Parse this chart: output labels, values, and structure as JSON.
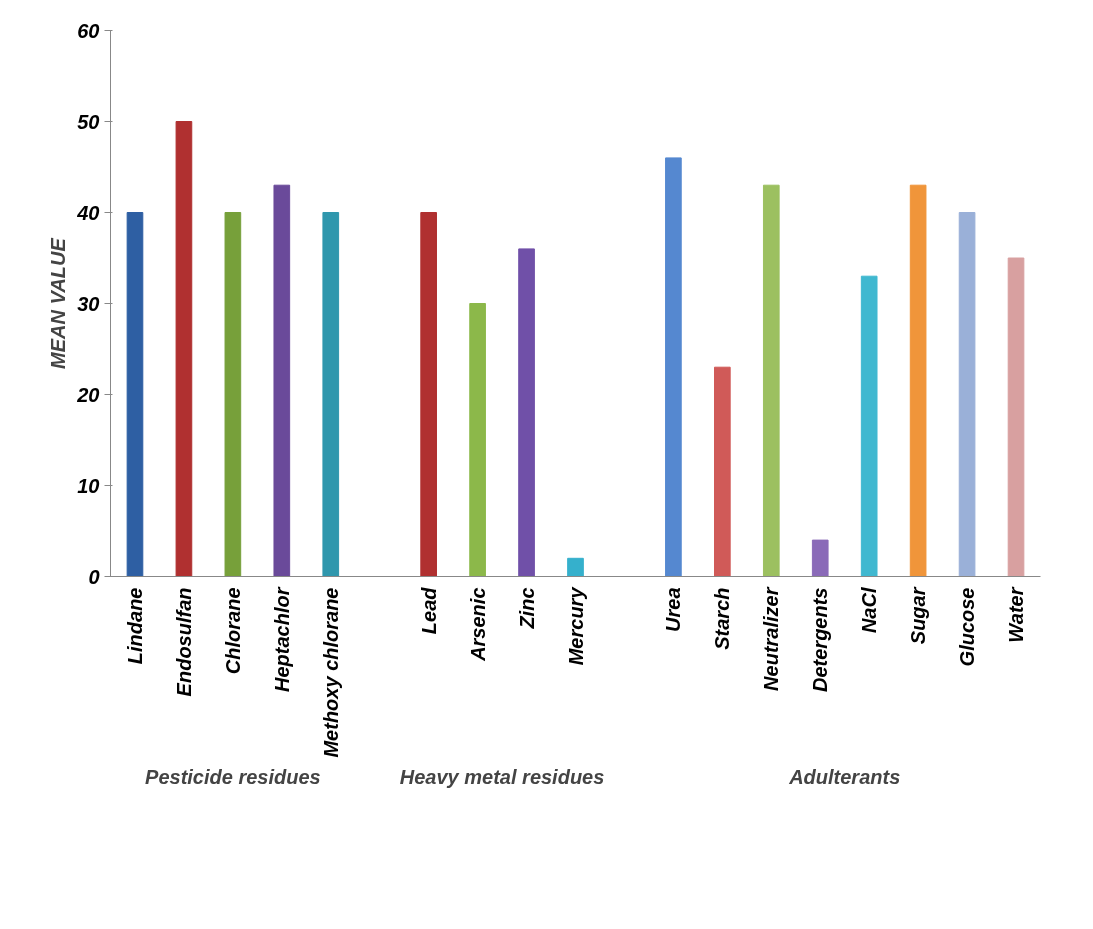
{
  "chart_data": {
    "type": "bar",
    "ylabel": "MEAN VALUE",
    "categories": [
      "Lindane",
      "Endosulfan",
      "Chlorane",
      "Heptachlor",
      "Methoxy chlorane",
      null,
      "Lead",
      "Arsenic",
      "Zinc",
      "Mercury",
      null,
      "Urea",
      "Starch",
      "Neutralizer",
      "Detergents",
      "NaCl",
      "Sugar",
      "Glucose",
      "Water"
    ],
    "values": [
      40,
      50,
      40,
      43,
      40,
      null,
      40,
      30,
      36,
      2,
      null,
      46,
      23,
      43,
      4,
      33,
      43,
      40,
      35
    ],
    "colors": [
      "#2e5fa3",
      "#b03030",
      "#77a03a",
      "#6a4a9a",
      "#2f97ad",
      "#ffffff",
      "#b03030",
      "#8cb84a",
      "#7050a8",
      "#35b0cc",
      "#ffffff",
      "#5588d0",
      "#d05a58",
      "#9cc060",
      "#8a6ab8",
      "#40b8d0",
      "#f0953a",
      "#9ab0d8",
      "#d8a0a0"
    ],
    "ylim": [
      0,
      60
    ],
    "yticks": [
      0,
      10,
      20,
      30,
      40,
      50,
      60
    ],
    "grid": false,
    "annotations": [
      "Pesticide residues",
      "Heavy metal residues",
      "Adulterants"
    ]
  }
}
